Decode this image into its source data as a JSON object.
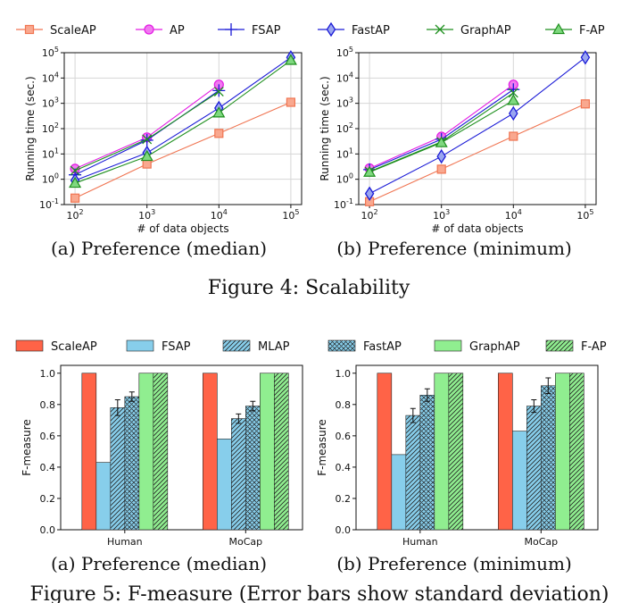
{
  "chart_data": [
    {
      "type": "line",
      "subcaption": "(a) Preference (median)",
      "xlabel": "# of data objects",
      "ylabel": "Running time (sec.)",
      "xscale": "log",
      "yscale": "log",
      "x": [
        100,
        1000,
        10000,
        100000
      ],
      "xticks": [
        "10^2",
        "10^3",
        "10^4",
        "10^5"
      ],
      "yticks": [
        "10^-1",
        "10^0",
        "10^1",
        "10^2",
        "10^3",
        "10^4",
        "10^5"
      ],
      "ylim": [
        0.1,
        100000
      ],
      "grid": true,
      "series": [
        {
          "name": "ScaleAP",
          "marker": "square",
          "color": "#f07552",
          "values": [
            0.18,
            4,
            65,
            1100
          ]
        },
        {
          "name": "AP",
          "marker": "circle",
          "color": "#e31be3",
          "values": [
            2.6,
            45,
            5500,
            null
          ]
        },
        {
          "name": "FSAP",
          "marker": "plus",
          "color": "#1a1ad6",
          "values": [
            1.5,
            35,
            3200,
            null
          ]
        },
        {
          "name": "FastAP",
          "marker": "diamond",
          "color": "#1a1ad6",
          "values": [
            0.9,
            11,
            650,
            65000
          ]
        },
        {
          "name": "GraphAP",
          "marker": "x",
          "color": "#1e8f1e",
          "values": [
            2.2,
            38,
            2900,
            null
          ]
        },
        {
          "name": "F-AP",
          "marker": "triangle",
          "color": "#1e8f1e",
          "values": [
            0.7,
            8,
            420,
            50000
          ]
        }
      ]
    },
    {
      "type": "line",
      "subcaption": "(b) Preference (minimum)",
      "xlabel": "# of data objects",
      "ylabel": "Running time (sec.)",
      "xscale": "log",
      "yscale": "log",
      "x": [
        100,
        1000,
        10000,
        100000
      ],
      "xticks": [
        "10^2",
        "10^3",
        "10^4",
        "10^5"
      ],
      "yticks": [
        "10^-1",
        "10^0",
        "10^1",
        "10^2",
        "10^3",
        "10^4",
        "10^5"
      ],
      "ylim": [
        0.1,
        100000
      ],
      "grid": true,
      "series": [
        {
          "name": "ScaleAP",
          "marker": "square",
          "color": "#f07552",
          "values": [
            0.13,
            2.5,
            50,
            950
          ]
        },
        {
          "name": "AP",
          "marker": "circle",
          "color": "#e31be3",
          "values": [
            2.7,
            48,
            5500,
            null
          ]
        },
        {
          "name": "FSAP",
          "marker": "plus",
          "color": "#1a1ad6",
          "values": [
            2.4,
            38,
            3500,
            null
          ]
        },
        {
          "name": "FastAP",
          "marker": "diamond",
          "color": "#1a1ad6",
          "values": [
            0.27,
            8,
            400,
            65000
          ]
        },
        {
          "name": "GraphAP",
          "marker": "x",
          "color": "#1e8f1e",
          "values": [
            2.0,
            30,
            2600,
            null
          ]
        },
        {
          "name": "F-AP",
          "marker": "triangle",
          "color": "#1e8f1e",
          "values": [
            1.9,
            28,
            1300,
            null
          ]
        }
      ]
    },
    {
      "type": "bar",
      "subcaption": "(a) Preference (median)",
      "ylabel": "F-measure",
      "categories": [
        "Human",
        "MoCap"
      ],
      "ylim": [
        0,
        1.05
      ],
      "yticks": [
        "0.0",
        "0.2",
        "0.4",
        "0.6",
        "0.8",
        "1.0"
      ],
      "series": [
        {
          "name": "ScaleAP",
          "color": "#ff6347",
          "hatch": "none",
          "values": [
            1.0,
            1.0
          ],
          "err": [
            0,
            0
          ]
        },
        {
          "name": "FSAP",
          "color": "#87ceeb",
          "hatch": "none",
          "values": [
            0.43,
            0.58
          ],
          "err": [
            0,
            0
          ]
        },
        {
          "name": "MLAP",
          "color": "#87ceeb",
          "hatch": "diag",
          "values": [
            0.78,
            0.71
          ],
          "err": [
            0.05,
            0.03
          ]
        },
        {
          "name": "FastAP",
          "color": "#87ceeb",
          "hatch": "cross",
          "values": [
            0.85,
            0.79
          ],
          "err": [
            0.03,
            0.03
          ]
        },
        {
          "name": "GraphAP",
          "color": "#90ee90",
          "hatch": "none",
          "values": [
            1.0,
            1.0
          ],
          "err": [
            0,
            0
          ]
        },
        {
          "name": "F-AP",
          "color": "#90ee90",
          "hatch": "diag",
          "values": [
            1.0,
            1.0
          ],
          "err": [
            0,
            0
          ]
        }
      ]
    },
    {
      "type": "bar",
      "subcaption": "(b) Preference (minimum)",
      "ylabel": "F-measure",
      "categories": [
        "Human",
        "MoCap"
      ],
      "ylim": [
        0,
        1.05
      ],
      "yticks": [
        "0.0",
        "0.2",
        "0.4",
        "0.6",
        "0.8",
        "1.0"
      ],
      "series": [
        {
          "name": "ScaleAP",
          "color": "#ff6347",
          "hatch": "none",
          "values": [
            1.0,
            1.0
          ],
          "err": [
            0,
            0
          ]
        },
        {
          "name": "FSAP",
          "color": "#87ceeb",
          "hatch": "none",
          "values": [
            0.48,
            0.63
          ],
          "err": [
            0,
            0
          ]
        },
        {
          "name": "MLAP",
          "color": "#87ceeb",
          "hatch": "diag",
          "values": [
            0.73,
            0.79
          ],
          "err": [
            0.045,
            0.04
          ]
        },
        {
          "name": "FastAP",
          "color": "#87ceeb",
          "hatch": "cross",
          "values": [
            0.86,
            0.92
          ],
          "err": [
            0.04,
            0.05
          ]
        },
        {
          "name": "GraphAP",
          "color": "#90ee90",
          "hatch": "none",
          "values": [
            1.0,
            1.0
          ],
          "err": [
            0,
            0
          ]
        },
        {
          "name": "F-AP",
          "color": "#90ee90",
          "hatch": "diag",
          "values": [
            1.0,
            1.0
          ],
          "err": [
            0,
            0
          ]
        }
      ]
    }
  ],
  "captions": {
    "figure4": "Figure 4: Scalability",
    "figure5": "Figure 5: F-measure (Error bars show standard deviation)"
  }
}
